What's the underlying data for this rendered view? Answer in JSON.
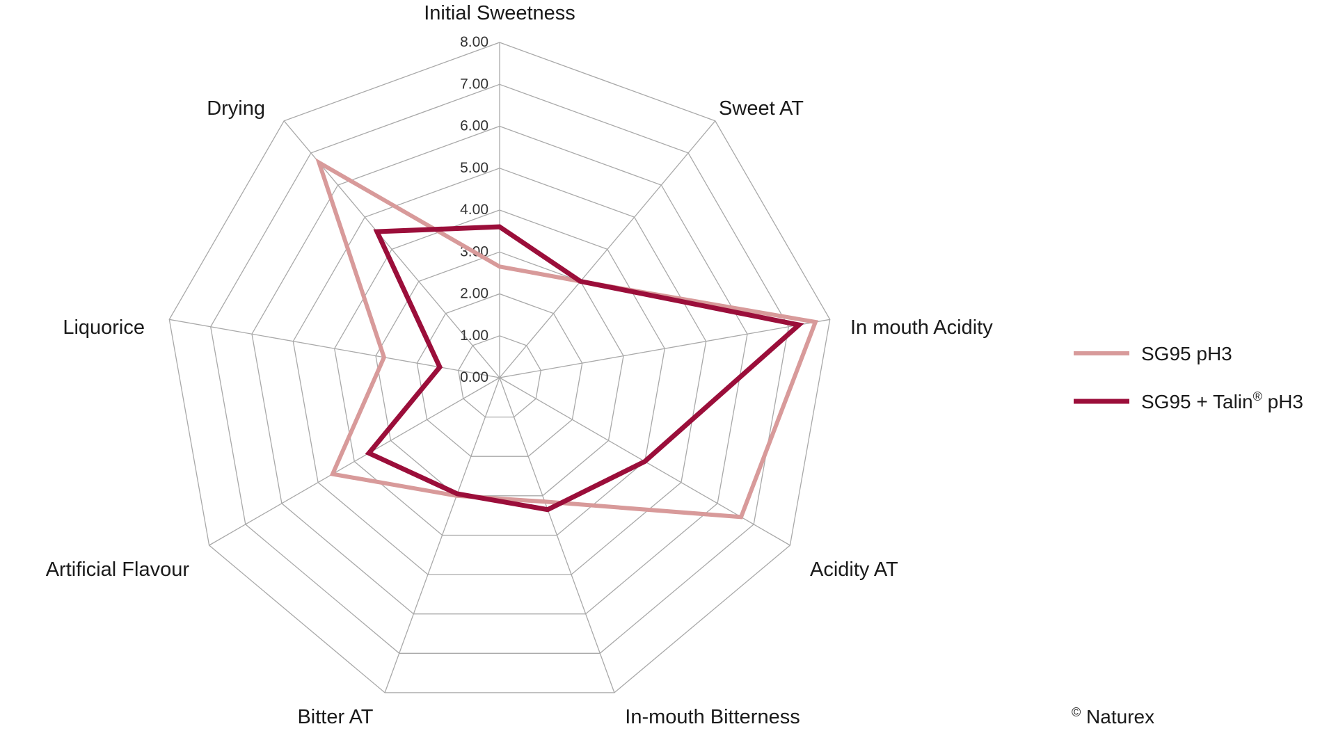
{
  "chart_data": {
    "type": "radar",
    "title": "",
    "axes": [
      "Initial Sweetness",
      "Sweet AT",
      "In mouth Acidity",
      "Acidity AT",
      "In-mouth Bitterness",
      "Bitter AT",
      "Artificial Flavour",
      "Liquorice",
      "Drying"
    ],
    "rlim": [
      0,
      8
    ],
    "ticks": [
      "0.00",
      "1.00",
      "2.00",
      "3.00",
      "4.00",
      "5.00",
      "6.00",
      "7.00",
      "8.00"
    ],
    "grid": true,
    "legend_position": "right",
    "series": [
      {
        "name": "SG95 pH3",
        "color": "#d89a9a",
        "values": [
          2.65,
          3.0,
          7.65,
          6.65,
          3.15,
          3.0,
          4.6,
          2.8,
          6.7
        ]
      },
      {
        "name_main": "SG95 + Talin",
        "name_sup": "®",
        "name_tail": " pH3",
        "color": "#9b0e3a",
        "values": [
          3.6,
          3.0,
          7.25,
          4.0,
          3.35,
          2.95,
          3.6,
          1.45,
          4.55
        ]
      }
    ]
  },
  "credit": {
    "symbol": "©",
    "text": " Naturex"
  }
}
